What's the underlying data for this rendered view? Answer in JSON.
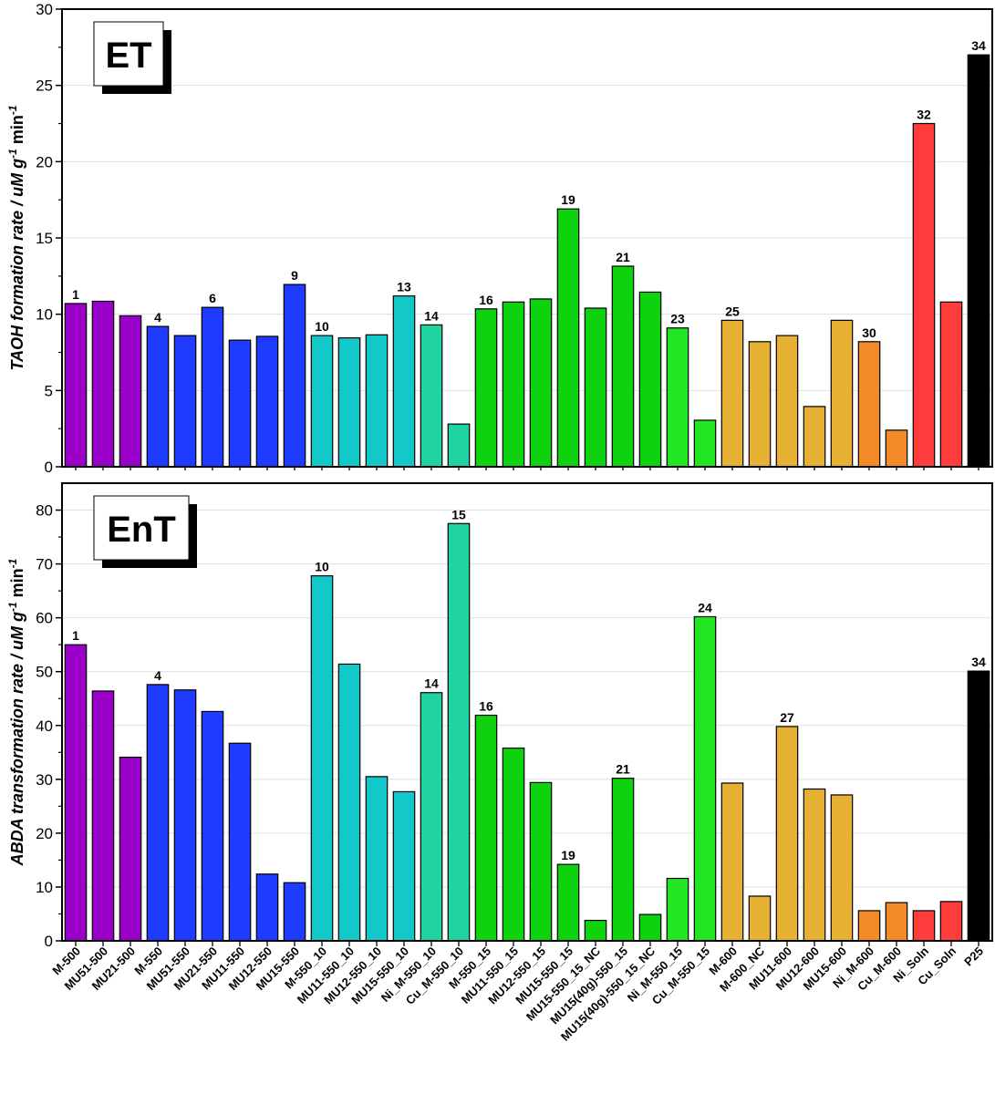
{
  "chart_data": [
    {
      "type": "bar",
      "panel_label": "ET",
      "ylabel": "TAOH formation rate / uM g",
      "ylabel_sup1": "-1",
      "ylabel_mid": " min",
      "ylabel_sup2": "-1",
      "ylim": [
        0,
        30
      ],
      "yticks": [
        0,
        5,
        10,
        15,
        20,
        25,
        30
      ],
      "grid": "horizontal",
      "values": [
        10.7,
        10.85,
        9.9,
        9.2,
        8.6,
        10.45,
        8.3,
        8.55,
        11.95,
        8.6,
        8.45,
        8.65,
        11.2,
        9.3,
        2.8,
        10.35,
        10.8,
        11.0,
        16.9,
        10.4,
        13.15,
        11.45,
        9.1,
        3.05,
        9.6,
        8.2,
        8.6,
        3.95,
        9.6,
        8.2,
        2.4,
        22.5,
        10.8,
        27.0
      ],
      "bar_labels": {
        "0": "1",
        "3": "4",
        "5": "6",
        "8": "9",
        "9": "10",
        "12": "13",
        "13": "14",
        "15": "16",
        "18": "19",
        "20": "21",
        "22": "23",
        "24": "25",
        "29": "30",
        "31": "32",
        "33": "34"
      }
    },
    {
      "type": "bar",
      "panel_label": "EnT",
      "ylabel": "ABDA transformation rate / uM g",
      "ylabel_sup1": "-1",
      "ylabel_mid": " min",
      "ylabel_sup2": "-1",
      "ylim": [
        0,
        85
      ],
      "yticks": [
        0,
        10,
        20,
        30,
        40,
        50,
        60,
        70,
        80
      ],
      "grid": "horizontal",
      "values": [
        55.0,
        46.4,
        34.1,
        47.6,
        46.6,
        42.6,
        36.7,
        12.4,
        10.8,
        67.8,
        51.4,
        30.5,
        27.7,
        46.1,
        77.5,
        41.9,
        35.8,
        29.4,
        14.2,
        3.8,
        30.2,
        4.9,
        11.6,
        60.2,
        29.3,
        8.3,
        39.8,
        28.2,
        27.1,
        5.6,
        7.1,
        5.6,
        7.3,
        50.1
      ],
      "bar_labels": {
        "0": "1",
        "3": "4",
        "9": "10",
        "13": "14",
        "14": "15",
        "15": "16",
        "18": "19",
        "20": "21",
        "23": "24",
        "26": "27",
        "33": "34"
      }
    }
  ],
  "categories": [
    "M-500",
    "MU51-500",
    "MU21-500",
    "M-550",
    "MU51-550",
    "MU21-550",
    "MU11-550",
    "MU12-550",
    "MU15-550",
    "M-550_10",
    "MU11-550_10",
    "MU12-550_10",
    "MU15-550_10",
    "Ni_M-550_10",
    "Cu_M-550_10",
    "M-550_15",
    "MU11-550_15",
    "MU12-550_15",
    "MU15-550_15",
    "MU15-550_15_NC",
    "MU15(40g)-550_15",
    "MU15(40g)-550_15_NC",
    "Ni_M-550_15",
    "Cu_M-550_15",
    "M-600",
    "M-600_NC",
    "MU11-600",
    "MU12-600",
    "MU15-600",
    "Ni_M-600",
    "Cu_M-600",
    "Ni_Soln",
    "Cu_Soln",
    "P25"
  ],
  "bar_colors": [
    "#9b00c8",
    "#9b00c8",
    "#9b00c8",
    "#1f3bff",
    "#1f3bff",
    "#1f3bff",
    "#1f3bff",
    "#1f3bff",
    "#1f3bff",
    "#12c8c8",
    "#12c8c8",
    "#12c8c8",
    "#12c8c8",
    "#1fd4a0",
    "#1fd4a0",
    "#0fd20f",
    "#0fd20f",
    "#0fd20f",
    "#0fd20f",
    "#0fd20f",
    "#0fd20f",
    "#0fd20f",
    "#22e622",
    "#22e622",
    "#e6b033",
    "#e6b033",
    "#e6b033",
    "#e6b033",
    "#e6b033",
    "#f28a28",
    "#f28a28",
    "#ff3c3c",
    "#ff3c3c",
    "#000000"
  ],
  "colors": {
    "grid": "#e0e0e0",
    "axis": "#000000",
    "bar_outline": "#000000"
  }
}
